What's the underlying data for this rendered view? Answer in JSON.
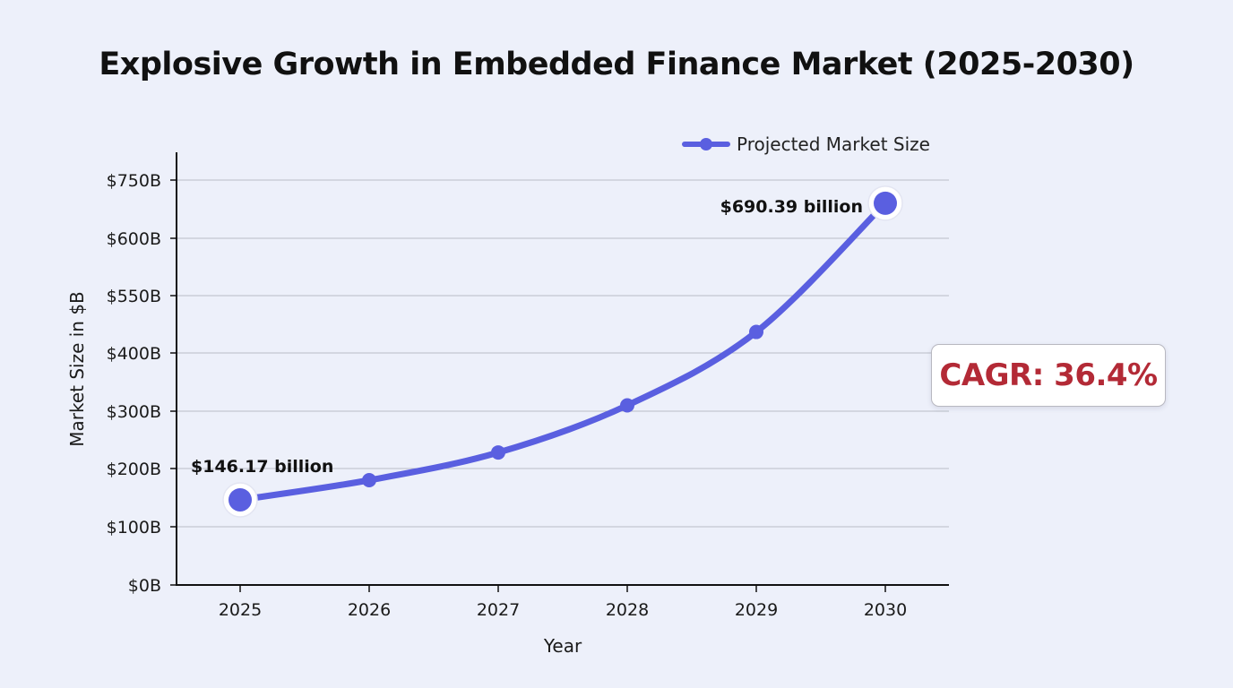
{
  "chart_data": {
    "type": "line",
    "title": "Explosive Growth in Embedded Finance Market (2025-2030)",
    "xlabel": "Year",
    "ylabel": "Market Size in $B",
    "categories": [
      "2025",
      "2026",
      "2027",
      "2028",
      "2029",
      "2030"
    ],
    "y_tick_labels": [
      "$0B",
      "$100B",
      "$200B",
      "$300B",
      "$400B",
      "$550B",
      "$600B",
      "$750B"
    ],
    "series": [
      {
        "name": "Projected Market Size",
        "values": [
          146.17,
          180,
          228,
          310,
          455,
          690.39
        ],
        "color": "#5a5fe0"
      }
    ],
    "data_labels": [
      {
        "category": "2025",
        "text": "$146.17 billion"
      },
      {
        "category": "2030",
        "text": "$690.39 billion"
      }
    ],
    "annotation": "CAGR: 36.4%",
    "legend_position": "top-right",
    "grid": true
  }
}
